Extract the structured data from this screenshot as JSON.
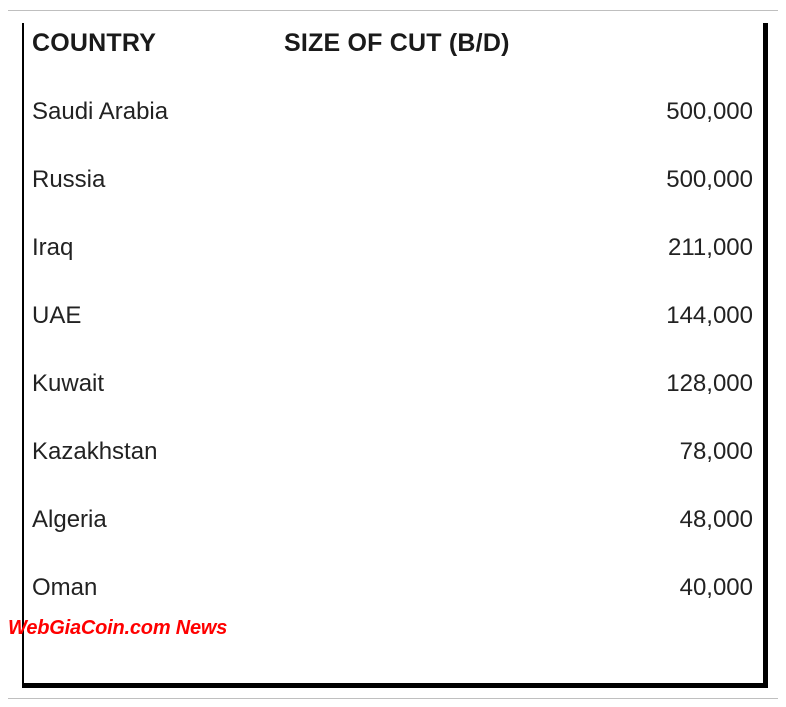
{
  "table": {
    "header": {
      "country": "COUNTRY",
      "size": "SIZE OF CUT (B/D)"
    },
    "rows": [
      {
        "country": "Saudi Arabia",
        "value": "500,000"
      },
      {
        "country": "Russia",
        "value": "500,000"
      },
      {
        "country": "Iraq",
        "value": "211,000"
      },
      {
        "country": "UAE",
        "value": "144,000"
      },
      {
        "country": "Kuwait",
        "value": "128,000"
      },
      {
        "country": "Kazakhstan",
        "value": "78,000"
      },
      {
        "country": "Algeria",
        "value": "48,000"
      },
      {
        "country": "Oman",
        "value": "40,000"
      }
    ],
    "style": {
      "type": "table",
      "columns": [
        "COUNTRY",
        "SIZE OF CUT (B/D)"
      ],
      "alignment": [
        "left",
        "right"
      ],
      "border_left_color": "#000000",
      "border_right_color": "#000000",
      "border_bottom_color": "#000000",
      "border_left_width": 2,
      "border_right_width": 5,
      "border_bottom_width": 5,
      "outer_frame_border_color": "#bfbfbf",
      "background_color": "#ffffff",
      "header_font_weight": 700,
      "header_font_size_pt": 19,
      "body_font_size_pt": 18,
      "text_color": "#222222",
      "font_family": "Arial"
    }
  },
  "watermark": {
    "text": "WebGiaCoin.com News",
    "color": "#ff0000",
    "font_weight": 700,
    "font_style": "italic",
    "font_size_pt": 15
  }
}
